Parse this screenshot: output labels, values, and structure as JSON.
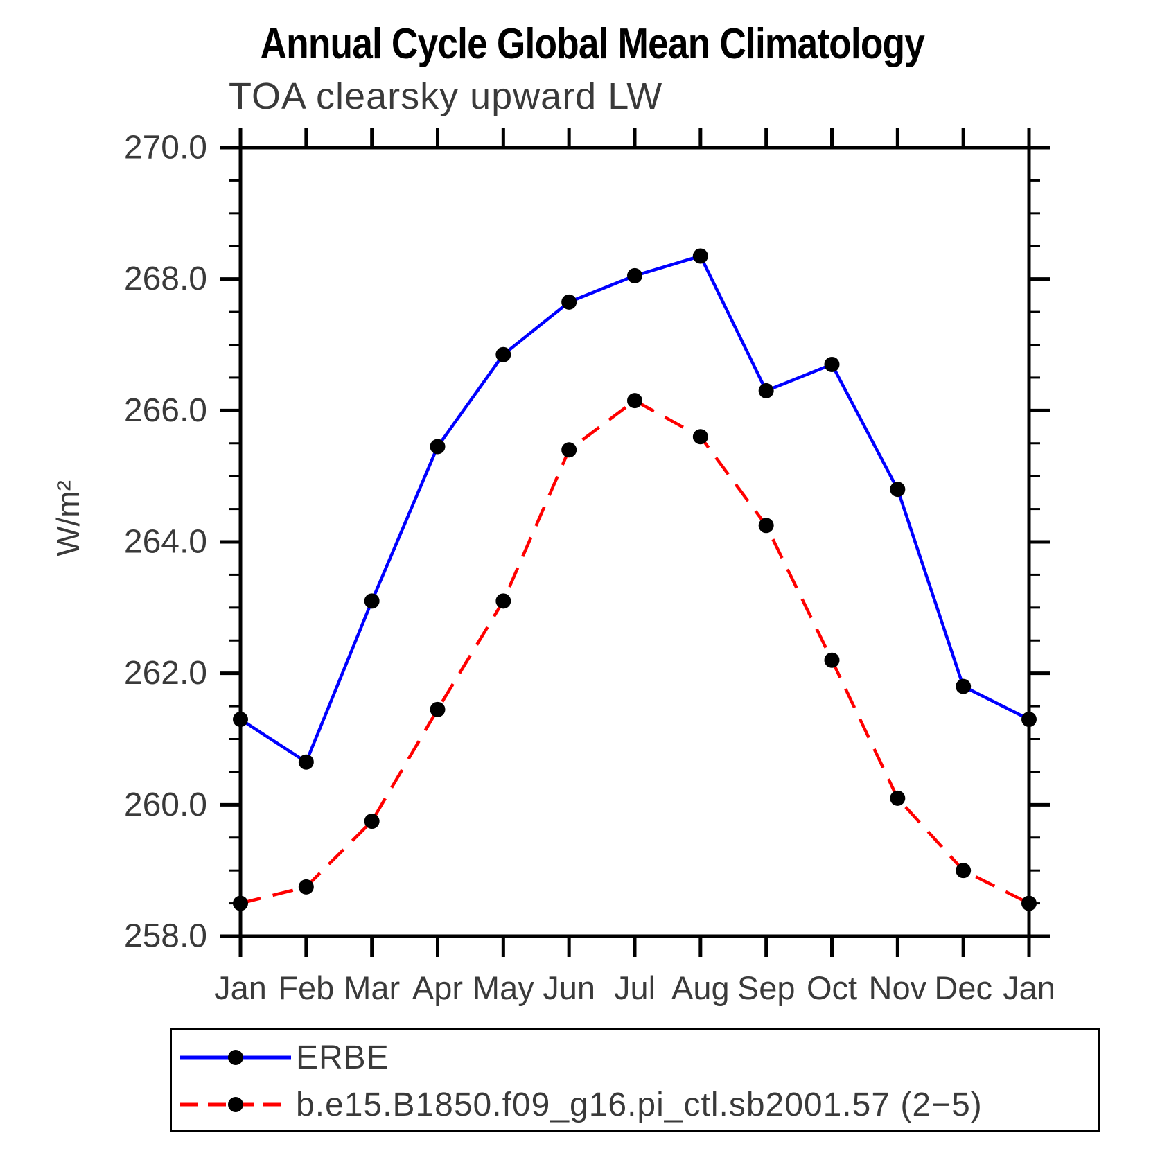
{
  "chart_data": {
    "type": "line",
    "title": "Annual Cycle Global Mean Climatology",
    "subtitle": "TOA clearsky upward LW",
    "ylabel": "W/m²",
    "categories": [
      "Jan",
      "Feb",
      "Mar",
      "Apr",
      "May",
      "Jun",
      "Jul",
      "Aug",
      "Sep",
      "Oct",
      "Nov",
      "Dec",
      "Jan"
    ],
    "ylim": [
      258.0,
      270.0
    ],
    "ytick_major": 2.0,
    "ytick_minor": 0.5,
    "ytick_format_decimals": 1,
    "grid": false,
    "legend_position": "bottom",
    "axis_color": "#000000",
    "tick_label_color": "#3a3a3a",
    "marker_color": "#000000",
    "series": [
      {
        "name": "ERBE",
        "color": "#0000ff",
        "style": "solid",
        "values": [
          261.3,
          260.65,
          263.1,
          265.45,
          266.85,
          267.65,
          268.05,
          268.35,
          266.3,
          266.7,
          264.8,
          261.8,
          261.3
        ]
      },
      {
        "name": "b.e15.B1850.f09_g16.pi_ctl.sb2001.57 (2−5)",
        "color": "#ff0000",
        "style": "dashed",
        "values": [
          258.5,
          258.75,
          259.75,
          261.45,
          263.1,
          265.4,
          266.15,
          265.6,
          264.25,
          262.2,
          260.1,
          259.0,
          258.5
        ]
      }
    ]
  }
}
